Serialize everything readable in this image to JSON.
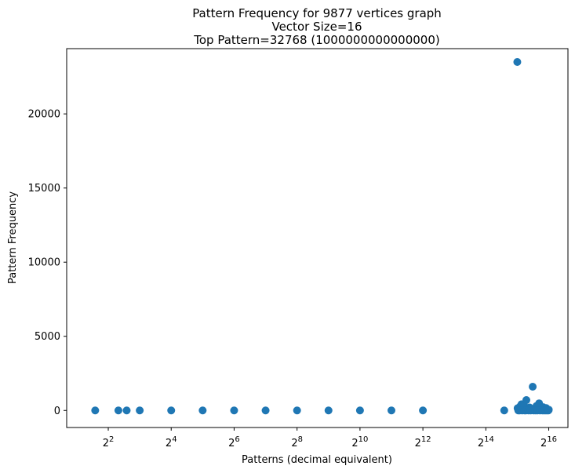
{
  "chart_data": {
    "type": "scatter",
    "title_lines": [
      "Pattern Frequency for 9877 vertices graph",
      "Vector Size=16",
      "Top Pattern=32768 (1000000000000000)"
    ],
    "xlabel": "Patterns (decimal equivalent)",
    "ylabel": "Pattern Frequency",
    "xscale": "log2",
    "xlim": [
      1.6,
      100000
    ],
    "ylim": [
      -1150,
      24400
    ],
    "x_ticks": [
      {
        "value": 4,
        "base": "2",
        "exp": "2"
      },
      {
        "value": 16,
        "base": "2",
        "exp": "4"
      },
      {
        "value": 64,
        "base": "2",
        "exp": "6"
      },
      {
        "value": 256,
        "base": "2",
        "exp": "8"
      },
      {
        "value": 1024,
        "base": "2",
        "exp": "10"
      },
      {
        "value": 4096,
        "base": "2",
        "exp": "12"
      },
      {
        "value": 16384,
        "base": "2",
        "exp": "14"
      },
      {
        "value": 65536,
        "base": "2",
        "exp": "16"
      }
    ],
    "y_ticks": [
      {
        "value": 0,
        "label": "0"
      },
      {
        "value": 5000,
        "label": "5000"
      },
      {
        "value": 10000,
        "label": "10000"
      },
      {
        "value": 15000,
        "label": "15000"
      },
      {
        "value": 20000,
        "label": "20000"
      }
    ],
    "marker_color": "#1f77b4",
    "series": [
      {
        "points": [
          {
            "x": 3,
            "y": 0
          },
          {
            "x": 5,
            "y": 0
          },
          {
            "x": 6,
            "y": 0
          },
          {
            "x": 8,
            "y": 0
          },
          {
            "x": 16,
            "y": 0
          },
          {
            "x": 32,
            "y": 0
          },
          {
            "x": 64,
            "y": 0
          },
          {
            "x": 128,
            "y": 0
          },
          {
            "x": 256,
            "y": 0
          },
          {
            "x": 512,
            "y": 0
          },
          {
            "x": 1024,
            "y": 0
          },
          {
            "x": 2048,
            "y": 0
          },
          {
            "x": 4096,
            "y": 0
          },
          {
            "x": 24576,
            "y": 0
          },
          {
            "x": 32768,
            "y": 23500
          },
          {
            "x": 33000,
            "y": 150
          },
          {
            "x": 34000,
            "y": 60
          },
          {
            "x": 35000,
            "y": 280
          },
          {
            "x": 36000,
            "y": 420
          },
          {
            "x": 37000,
            "y": 100
          },
          {
            "x": 38000,
            "y": 350
          },
          {
            "x": 40000,
            "y": 700
          },
          {
            "x": 41000,
            "y": 80
          },
          {
            "x": 43000,
            "y": 200
          },
          {
            "x": 45000,
            "y": 40
          },
          {
            "x": 46000,
            "y": 1600
          },
          {
            "x": 48000,
            "y": 120
          },
          {
            "x": 50000,
            "y": 300
          },
          {
            "x": 52000,
            "y": 60
          },
          {
            "x": 53000,
            "y": 480
          },
          {
            "x": 55000,
            "y": 150
          },
          {
            "x": 56000,
            "y": 30
          },
          {
            "x": 58000,
            "y": 220
          },
          {
            "x": 60000,
            "y": 90
          },
          {
            "x": 62000,
            "y": 160
          },
          {
            "x": 64000,
            "y": 20
          },
          {
            "x": 65535,
            "y": 50
          },
          {
            "x": 33500,
            "y": 0
          },
          {
            "x": 34500,
            "y": 0
          },
          {
            "x": 36500,
            "y": 0
          },
          {
            "x": 38500,
            "y": 0
          },
          {
            "x": 39500,
            "y": 0
          },
          {
            "x": 42000,
            "y": 0
          },
          {
            "x": 44000,
            "y": 0
          },
          {
            "x": 47000,
            "y": 0
          },
          {
            "x": 49000,
            "y": 0
          },
          {
            "x": 51000,
            "y": 0
          },
          {
            "x": 54000,
            "y": 0
          },
          {
            "x": 57000,
            "y": 0
          },
          {
            "x": 59000,
            "y": 0
          },
          {
            "x": 61000,
            "y": 0
          },
          {
            "x": 63000,
            "y": 0
          },
          {
            "x": 65000,
            "y": 0
          }
        ]
      }
    ]
  }
}
